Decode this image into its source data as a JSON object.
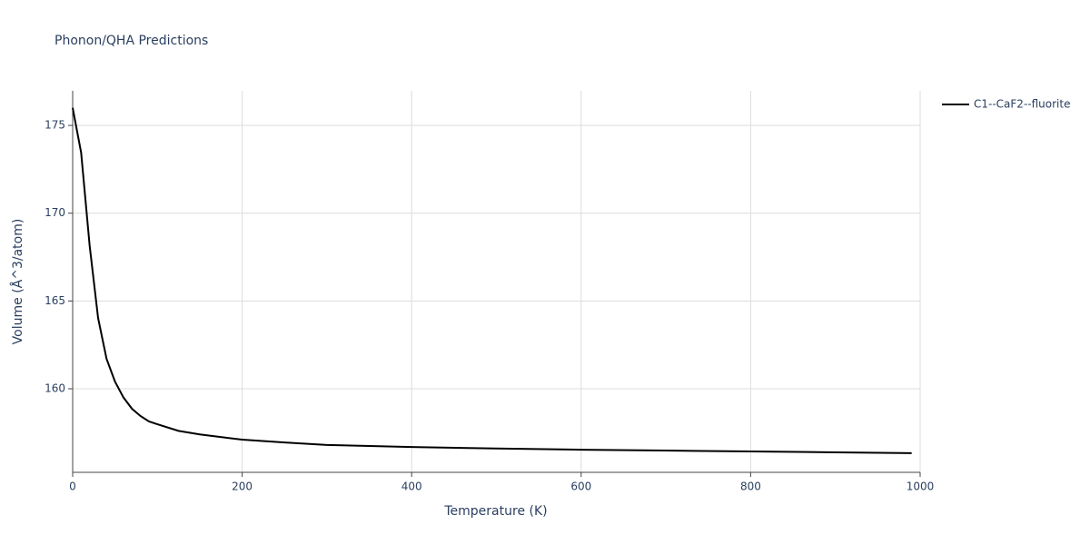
{
  "chart_data": {
    "type": "line",
    "title": "Phonon/QHA Predictions",
    "x_label": "Temperature (K)",
    "y_label": "Volume (Å^3/atom)",
    "x": [
      0,
      10,
      20,
      30,
      40,
      50,
      60,
      70,
      80,
      90,
      100,
      125,
      150,
      200,
      250,
      300,
      400,
      500,
      600,
      700,
      800,
      900,
      990
    ],
    "series": [
      {
        "name": "C1--CaF2--fluorite",
        "color": "#000000",
        "values": [
          176.0,
          173.45,
          168.17,
          164.03,
          161.7,
          160.4,
          159.5,
          158.86,
          158.45,
          158.14,
          157.98,
          157.6,
          157.4,
          157.1,
          156.94,
          156.8,
          156.68,
          156.6,
          156.53,
          156.48,
          156.43,
          156.38,
          156.33
        ]
      }
    ],
    "xlim": [
      0,
      1000
    ],
    "xticks": [
      0,
      200,
      400,
      600,
      800,
      1000
    ],
    "ylim": [
      155.24,
      176.97
    ],
    "yticks": [
      160,
      165,
      170,
      175
    ],
    "grid": true,
    "legend": "right"
  }
}
